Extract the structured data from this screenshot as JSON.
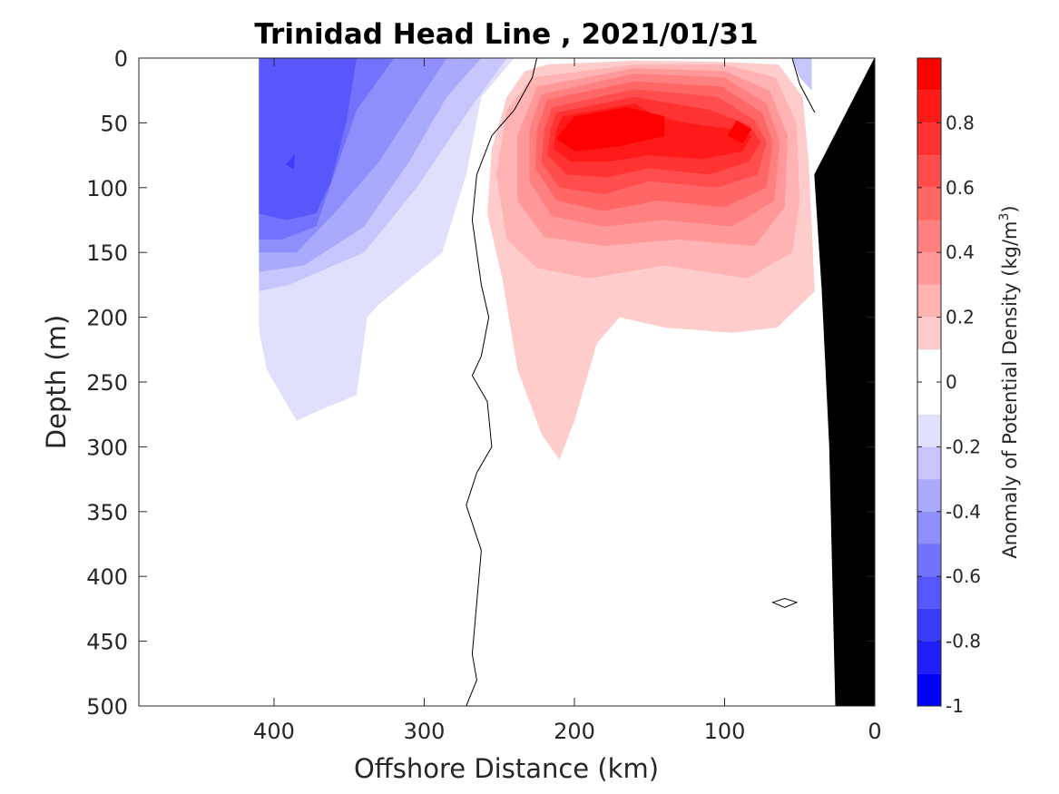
{
  "chart_data": {
    "type": "heatmap",
    "title": "Trinidad Head Line , 2021/01/31",
    "xlabel": "Offshore Distance (km)",
    "ylabel": "Depth (m)",
    "xlim": [
      490,
      0
    ],
    "ylim": [
      0,
      500
    ],
    "x_ticks": [
      400,
      300,
      200,
      100,
      0
    ],
    "y_ticks": [
      0,
      50,
      100,
      150,
      200,
      250,
      300,
      350,
      400,
      450,
      500
    ],
    "y_reversed": true,
    "colorbar": {
      "label_main": "Anomaly of Potential Density (kg/m",
      "label_sup": "3",
      "label_end": ")",
      "range": [
        -1,
        1
      ],
      "tick_values": [
        0.8,
        0.6,
        0.4,
        0.2,
        0,
        -0.2,
        -0.4,
        -0.6,
        -0.8,
        -1
      ],
      "tick_labels": [
        "0.8",
        "0.6",
        "0.4",
        "0.2",
        "0",
        "-0.2",
        "-0.4",
        "-0.6",
        "-0.8",
        "-1"
      ],
      "levels": [
        {
          "from": 0.9,
          "to": 1.0,
          "color": "#ff0000"
        },
        {
          "from": 0.8,
          "to": 0.9,
          "color": "#ff1a1a"
        },
        {
          "from": 0.7,
          "to": 0.8,
          "color": "#ff3333"
        },
        {
          "from": 0.6,
          "to": 0.7,
          "color": "#ff4d4d"
        },
        {
          "from": 0.5,
          "to": 0.6,
          "color": "#ff6666"
        },
        {
          "from": 0.4,
          "to": 0.5,
          "color": "#ff8080"
        },
        {
          "from": 0.3,
          "to": 0.4,
          "color": "#ff9999"
        },
        {
          "from": 0.2,
          "to": 0.3,
          "color": "#ffb3b3"
        },
        {
          "from": 0.1,
          "to": 0.2,
          "color": "#ffcccc"
        },
        {
          "from": 0.0,
          "to": 0.1,
          "color": "#ffffff"
        },
        {
          "from": -0.1,
          "to": 0.0,
          "color": "#ffffff"
        },
        {
          "from": -0.2,
          "to": -0.1,
          "color": "#e0e0fc"
        },
        {
          "from": -0.3,
          "to": -0.2,
          "color": "#c6c6fc"
        },
        {
          "from": -0.4,
          "to": -0.3,
          "color": "#aaaafc"
        },
        {
          "from": -0.5,
          "to": -0.4,
          "color": "#8e8efc"
        },
        {
          "from": -0.6,
          "to": -0.5,
          "color": "#7272fc"
        },
        {
          "from": -0.7,
          "to": -0.6,
          "color": "#5757fc"
        },
        {
          "from": -0.8,
          "to": -0.7,
          "color": "#3b3bfc"
        },
        {
          "from": -0.9,
          "to": -0.8,
          "color": "#1f1ffc"
        },
        {
          "from": -1.0,
          "to": -0.9,
          "color": "#0000ff"
        }
      ]
    },
    "negative_anomaly_regions": [
      {
        "level": -0.1,
        "points": [
          [
            410,
            0
          ],
          [
            240,
            0
          ],
          [
            262,
            30
          ],
          [
            272,
            90
          ],
          [
            288,
            150
          ],
          [
            330,
            190
          ],
          [
            338,
            200
          ],
          [
            345,
            260
          ],
          [
            370,
            272
          ],
          [
            385,
            280
          ],
          [
            405,
            240
          ],
          [
            410,
            210
          ]
        ]
      },
      {
        "level": -0.2,
        "points": [
          [
            410,
            0
          ],
          [
            245,
            0
          ],
          [
            270,
            40
          ],
          [
            305,
            100
          ],
          [
            340,
            150
          ],
          [
            390,
            175
          ],
          [
            410,
            180
          ]
        ]
      },
      {
        "level": -0.3,
        "points": [
          [
            410,
            0
          ],
          [
            262,
            0
          ],
          [
            285,
            30
          ],
          [
            310,
            80
          ],
          [
            340,
            130
          ],
          [
            380,
            160
          ],
          [
            410,
            165
          ]
        ]
      },
      {
        "level": -0.4,
        "points": [
          [
            410,
            0
          ],
          [
            285,
            0
          ],
          [
            305,
            35
          ],
          [
            330,
            80
          ],
          [
            360,
            120
          ],
          [
            385,
            150
          ],
          [
            410,
            150
          ]
        ]
      },
      {
        "level": -0.5,
        "points": [
          [
            410,
            0
          ],
          [
            320,
            0
          ],
          [
            345,
            40
          ],
          [
            360,
            90
          ],
          [
            372,
            130
          ],
          [
            395,
            140
          ],
          [
            410,
            140
          ]
        ]
      },
      {
        "level": -0.6,
        "points": [
          [
            410,
            0
          ],
          [
            345,
            0
          ],
          [
            352,
            50
          ],
          [
            362,
            95
          ],
          [
            372,
            120
          ],
          [
            392,
            125
          ],
          [
            410,
            120
          ]
        ]
      },
      {
        "level": -0.7,
        "points": [
          [
            386,
            74
          ],
          [
            392,
            82
          ],
          [
            387,
            86
          ]
        ]
      },
      {
        "level": -0.2,
        "points": [
          [
            55,
            0
          ],
          [
            42,
            0
          ],
          [
            42,
            25
          ],
          [
            50,
            15
          ]
        ]
      }
    ],
    "positive_anomaly_regions": [
      {
        "level": 0.1,
        "points": [
          [
            233,
            10
          ],
          [
            218,
            5
          ],
          [
            160,
            2
          ],
          [
            100,
            3
          ],
          [
            64,
            5
          ],
          [
            48,
            30
          ],
          [
            44,
            80
          ],
          [
            40,
            180
          ],
          [
            65,
            208
          ],
          [
            95,
            212
          ],
          [
            140,
            208
          ],
          [
            170,
            200
          ],
          [
            185,
            220
          ],
          [
            200,
            280
          ],
          [
            210,
            310
          ],
          [
            222,
            290
          ],
          [
            238,
            240
          ],
          [
            248,
            170
          ],
          [
            258,
            120
          ],
          [
            255,
            70
          ],
          [
            245,
            30
          ]
        ]
      },
      {
        "level": 0.2,
        "points": [
          [
            228,
            15
          ],
          [
            160,
            5
          ],
          [
            100,
            5
          ],
          [
            66,
            15
          ],
          [
            52,
            50
          ],
          [
            50,
            110
          ],
          [
            55,
            150
          ],
          [
            85,
            170
          ],
          [
            140,
            160
          ],
          [
            190,
            170
          ],
          [
            225,
            162
          ],
          [
            245,
            140
          ],
          [
            252,
            90
          ],
          [
            245,
            40
          ]
        ]
      },
      {
        "level": 0.3,
        "points": [
          [
            225,
            22
          ],
          [
            160,
            8
          ],
          [
            100,
            10
          ],
          [
            70,
            25
          ],
          [
            58,
            60
          ],
          [
            60,
            115
          ],
          [
            80,
            145
          ],
          [
            130,
            140
          ],
          [
            180,
            145
          ],
          [
            220,
            138
          ],
          [
            238,
            110
          ],
          [
            238,
            60
          ]
        ]
      },
      {
        "level": 0.4,
        "points": [
          [
            222,
            28
          ],
          [
            160,
            12
          ],
          [
            100,
            15
          ],
          [
            72,
            35
          ],
          [
            63,
            65
          ],
          [
            67,
            110
          ],
          [
            95,
            130
          ],
          [
            140,
            125
          ],
          [
            180,
            130
          ],
          [
            215,
            122
          ],
          [
            230,
            95
          ],
          [
            230,
            55
          ]
        ]
      },
      {
        "level": 0.5,
        "points": [
          [
            218,
            32
          ],
          [
            160,
            18
          ],
          [
            102,
            22
          ],
          [
            75,
            42
          ],
          [
            68,
            65
          ],
          [
            72,
            100
          ],
          [
            100,
            115
          ],
          [
            145,
            110
          ],
          [
            180,
            118
          ],
          [
            212,
            110
          ],
          [
            226,
            85
          ],
          [
            225,
            55
          ]
        ]
      },
      {
        "level": 0.6,
        "points": [
          [
            215,
            38
          ],
          [
            160,
            24
          ],
          [
            105,
            30
          ],
          [
            80,
            48
          ],
          [
            72,
            65
          ],
          [
            78,
            90
          ],
          [
            105,
            100
          ],
          [
            150,
            95
          ],
          [
            180,
            105
          ],
          [
            210,
            100
          ],
          [
            222,
            80
          ],
          [
            220,
            55
          ]
        ]
      },
      {
        "level": 0.7,
        "points": [
          [
            212,
            42
          ],
          [
            160,
            30
          ],
          [
            110,
            40
          ],
          [
            83,
            52
          ],
          [
            76,
            65
          ],
          [
            84,
            80
          ],
          [
            110,
            90
          ],
          [
            150,
            85
          ],
          [
            178,
            92
          ],
          [
            205,
            90
          ],
          [
            218,
            75
          ],
          [
            216,
            55
          ]
        ]
      },
      {
        "level": 0.8,
        "points": [
          [
            208,
            45
          ],
          [
            160,
            35
          ],
          [
            145,
            45
          ],
          [
            125,
            50
          ],
          [
            95,
            55
          ],
          [
            82,
            60
          ],
          [
            88,
            72
          ],
          [
            115,
            78
          ],
          [
            150,
            75
          ],
          [
            178,
            80
          ],
          [
            202,
            80
          ],
          [
            214,
            70
          ],
          [
            212,
            55
          ]
        ]
      },
      {
        "level": 0.9,
        "points": [
          [
            200,
            45
          ],
          [
            165,
            38
          ],
          [
            140,
            45
          ],
          [
            140,
            60
          ],
          [
            170,
            68
          ],
          [
            200,
            72
          ],
          [
            212,
            62
          ]
        ]
      },
      {
        "level": 0.9,
        "points": [
          [
            92,
            48
          ],
          [
            82,
            55
          ],
          [
            88,
            66
          ],
          [
            98,
            60
          ]
        ]
      }
    ],
    "zero_contour": [
      [
        225,
        0
      ],
      [
        228,
        15
      ],
      [
        240,
        40
      ],
      [
        255,
        60
      ],
      [
        265,
        90
      ],
      [
        268,
        125
      ],
      [
        265,
        150
      ],
      [
        262,
        175
      ],
      [
        257,
        200
      ],
      [
        262,
        230
      ],
      [
        268,
        245
      ],
      [
        258,
        265
      ],
      [
        255,
        300
      ],
      [
        265,
        320
      ],
      [
        272,
        345
      ],
      [
        262,
        380
      ],
      [
        265,
        420
      ],
      [
        268,
        460
      ],
      [
        265,
        480
      ],
      [
        272,
        500
      ]
    ],
    "zero_contour_nearshore": [
      [
        55,
        0
      ],
      [
        50,
        20
      ],
      [
        40,
        42
      ]
    ],
    "small_contour_loop": [
      [
        68,
        420
      ],
      [
        60,
        417
      ],
      [
        52,
        420
      ],
      [
        60,
        424
      ]
    ],
    "bottom_polygon": [
      [
        0,
        0
      ],
      [
        0,
        500
      ],
      [
        26,
        500
      ],
      [
        30,
        300
      ],
      [
        35,
        180
      ],
      [
        40,
        90
      ]
    ]
  }
}
